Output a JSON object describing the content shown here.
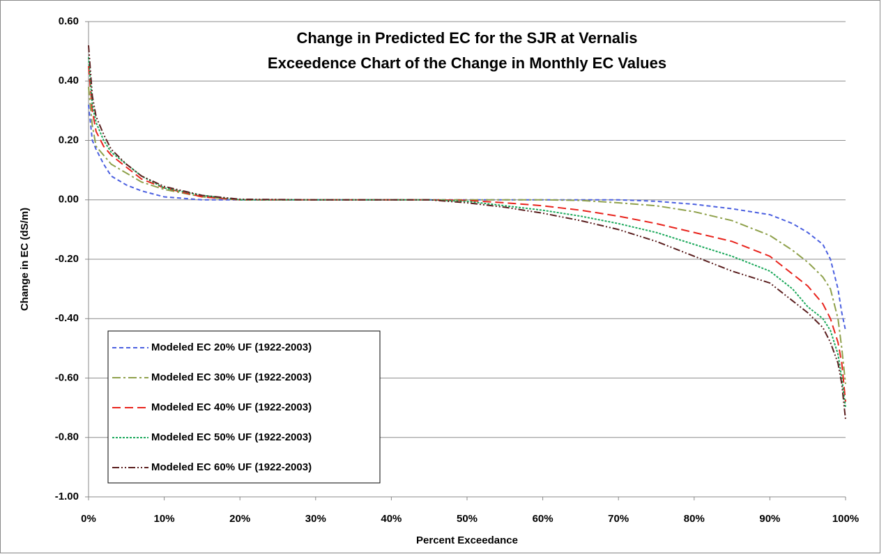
{
  "chart_data": {
    "type": "line",
    "title": "Change in Predicted EC for the SJR at Vernalis",
    "subtitle": "Exceedence Chart of the Change in Monthly EC Values",
    "x_label": "Percent Exceedance",
    "y_label": "Change in EC (dS/m)",
    "x": [
      0,
      0.5,
      1,
      2,
      3,
      5,
      7,
      10,
      15,
      20,
      30,
      40,
      45,
      50,
      55,
      60,
      65,
      70,
      75,
      80,
      85,
      90,
      93,
      95,
      97,
      98,
      99,
      99.5,
      100
    ],
    "series": [
      {
        "name": "Modeled EC 20% UF (1922-2003)",
        "color": "#4a5fe0",
        "dash": "6,4",
        "values": [
          0.32,
          0.2,
          0.17,
          0.12,
          0.08,
          0.05,
          0.03,
          0.01,
          0,
          0,
          0,
          0,
          0,
          0,
          0,
          0,
          0,
          0,
          -0.005,
          -0.015,
          -0.03,
          -0.05,
          -0.08,
          -0.11,
          -0.15,
          -0.2,
          -0.3,
          -0.38,
          -0.44
        ]
      },
      {
        "name": "Modeled EC 30% UF (1922-2003)",
        "color": "#8ea04a",
        "dash": "12,4,3,4",
        "values": [
          0.38,
          0.25,
          0.18,
          0.15,
          0.12,
          0.09,
          0.06,
          0.035,
          0.01,
          0,
          0,
          0,
          0,
          0,
          0,
          0,
          -0.002,
          -0.01,
          -0.02,
          -0.04,
          -0.07,
          -0.12,
          -0.17,
          -0.21,
          -0.26,
          -0.3,
          -0.4,
          -0.5,
          -0.62
        ]
      },
      {
        "name": "Modeled EC 40% UF (1922-2003)",
        "color": "#e8231c",
        "dash": "12,6",
        "values": [
          0.45,
          0.3,
          0.23,
          0.18,
          0.15,
          0.11,
          0.07,
          0.04,
          0.01,
          0,
          0,
          0,
          0,
          -0.002,
          -0.01,
          -0.02,
          -0.035,
          -0.055,
          -0.08,
          -0.11,
          -0.14,
          -0.19,
          -0.25,
          -0.29,
          -0.35,
          -0.4,
          -0.48,
          -0.55,
          -0.68
        ]
      },
      {
        "name": "Modeled EC 50% UF (1922-2003)",
        "color": "#1aa85a",
        "dash": "3,2",
        "values": [
          0.48,
          0.32,
          0.26,
          0.2,
          0.16,
          0.12,
          0.08,
          0.04,
          0.015,
          0,
          0,
          0,
          0,
          -0.005,
          -0.02,
          -0.035,
          -0.055,
          -0.08,
          -0.11,
          -0.15,
          -0.19,
          -0.24,
          -0.3,
          -0.36,
          -0.4,
          -0.44,
          -0.52,
          -0.6,
          -0.7
        ]
      },
      {
        "name": "Modeled EC 60% UF (1922-2003)",
        "color": "#5a1e1e",
        "dash": "10,3,2,3,2,3",
        "values": [
          0.52,
          0.35,
          0.28,
          0.22,
          0.17,
          0.12,
          0.08,
          0.045,
          0.015,
          0.002,
          0,
          0,
          0,
          -0.01,
          -0.025,
          -0.045,
          -0.07,
          -0.1,
          -0.14,
          -0.19,
          -0.24,
          -0.28,
          -0.34,
          -0.38,
          -0.43,
          -0.48,
          -0.55,
          -0.62,
          -0.74
        ]
      }
    ],
    "xlim": [
      0,
      100
    ],
    "xticks": [
      {
        "value": 0,
        "label": "0%"
      },
      {
        "value": 10,
        "label": "10%"
      },
      {
        "value": 20,
        "label": "20%"
      },
      {
        "value": 30,
        "label": "30%"
      },
      {
        "value": 40,
        "label": "40%"
      },
      {
        "value": 50,
        "label": "50%"
      },
      {
        "value": 60,
        "label": "60%"
      },
      {
        "value": 70,
        "label": "70%"
      },
      {
        "value": 80,
        "label": "80%"
      },
      {
        "value": 90,
        "label": "90%"
      },
      {
        "value": 100,
        "label": "100%"
      }
    ],
    "ylim": [
      -1,
      0.6
    ],
    "yticks": [
      {
        "value": -1,
        "label": "-1.00"
      },
      {
        "value": -0.8,
        "label": "-0.80"
      },
      {
        "value": -0.6,
        "label": "-0.60"
      },
      {
        "value": -0.4,
        "label": "-0.40"
      },
      {
        "value": -0.2,
        "label": "-0.20"
      },
      {
        "value": 0,
        "label": "0.00"
      },
      {
        "value": 0.2,
        "label": "0.20"
      },
      {
        "value": 0.4,
        "label": "0.40"
      },
      {
        "value": 0.6,
        "label": "0.60"
      }
    ],
    "grid": true,
    "legend": "lower left"
  }
}
